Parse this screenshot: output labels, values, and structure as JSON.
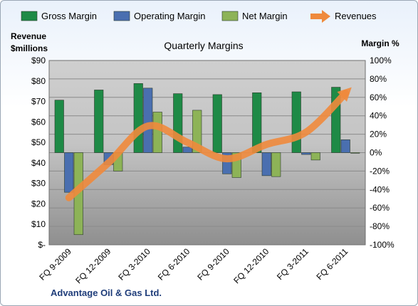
{
  "chart_data": {
    "type": "bar",
    "title": "Quarterly Margins",
    "company": "Advantage Oil & Gas Ltd.",
    "categories": [
      "FQ 9-2009",
      "FQ 12-2009",
      "FQ 3-2010",
      "FQ 6-2010",
      "FQ 9-2010",
      "FQ 12-2010",
      "FQ 3-2011",
      "FQ 6-2011"
    ],
    "series": [
      {
        "name": "Gross Margin",
        "axis": "right",
        "color": "#1e8a46",
        "values": [
          57,
          68,
          75,
          64,
          63,
          65,
          66,
          71
        ]
      },
      {
        "name": "Operating Margin",
        "axis": "right",
        "color": "#4a6fb0",
        "values": [
          -43,
          -13,
          70,
          6,
          -23,
          -25,
          -2,
          14
        ]
      },
      {
        "name": "Net Margin",
        "axis": "right",
        "color": "#8db357",
        "values": [
          -89,
          -20,
          44,
          46,
          -27,
          -26,
          -8,
          0
        ]
      },
      {
        "name": "Revenues",
        "axis": "left",
        "type": "line",
        "color": "#ef8a3c",
        "values": [
          23,
          40,
          58,
          50,
          42,
          49,
          55,
          74
        ]
      }
    ],
    "ylabel_left": "Revenue $millions",
    "ylabel_right": "Margin %",
    "ylim_left": [
      0,
      90
    ],
    "ylim_right": [
      -100,
      100
    ],
    "yticks_left": [
      "$-",
      "$10",
      "$20",
      "$30",
      "$40",
      "$50",
      "$60",
      "$70",
      "$80",
      "$90"
    ],
    "yticks_right": [
      "-100%",
      "-80%",
      "-60%",
      "-40%",
      "-20%",
      "0%",
      "20%",
      "40%",
      "60%",
      "80%",
      "100%"
    ],
    "grid": true,
    "legend_position": "top"
  }
}
